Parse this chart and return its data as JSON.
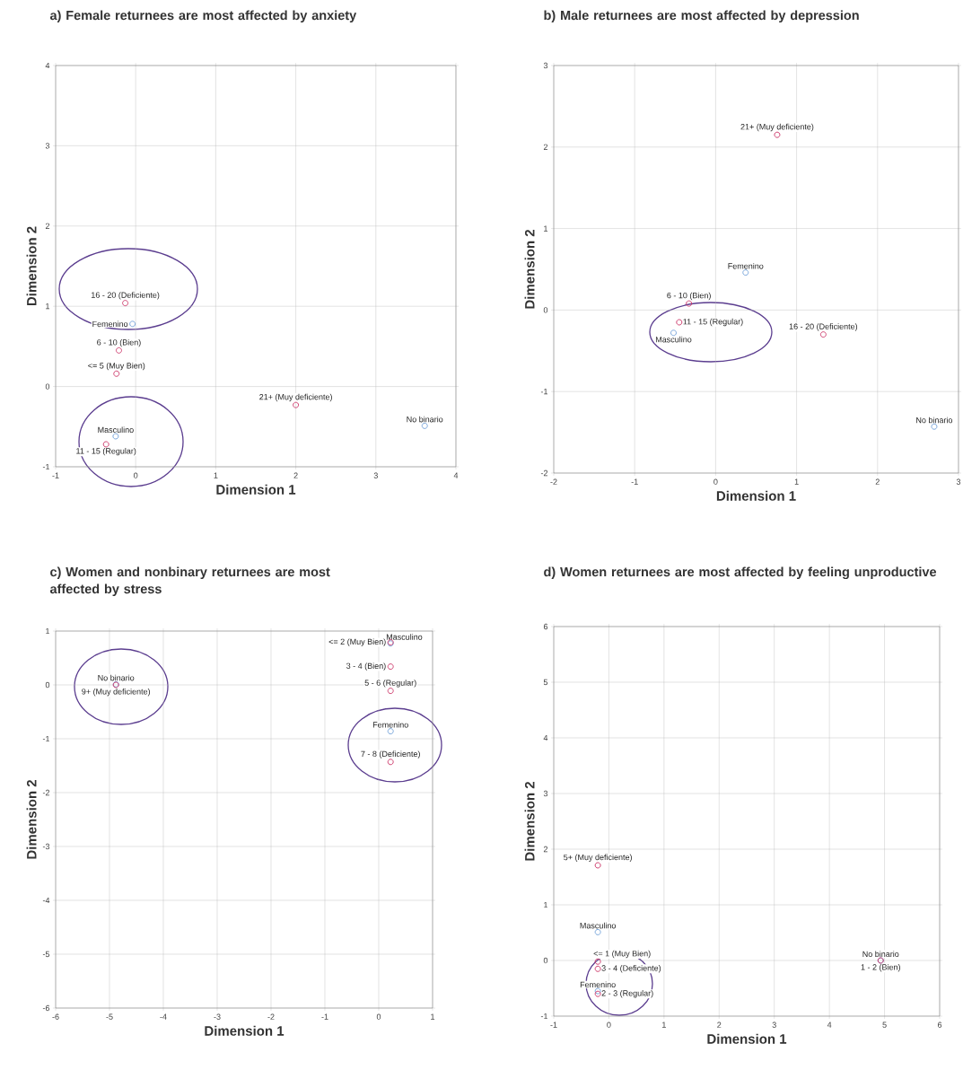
{
  "chart_data": [
    {
      "type": "scatter",
      "title": "a) Female returnees are most affected by anxiety",
      "xlabel": "Dimension 1",
      "ylabel": "Dimension 2",
      "xlim": [
        -1,
        4
      ],
      "ylim": [
        -1,
        4
      ],
      "xticks": [
        -1,
        0,
        1,
        2,
        3,
        4
      ],
      "yticks": [
        -1,
        0,
        1,
        2,
        3,
        4
      ],
      "grid": true,
      "marker": "circle",
      "series": [
        {
          "color": "#6f9fd8",
          "x": [
            -0.04,
            3.61,
            -0.25
          ],
          "values": [
            0.78,
            -0.49,
            -0.62
          ]
        },
        {
          "color": "#cc3366",
          "x": [
            -0.13,
            -0.21,
            -0.24,
            2.0,
            -0.37
          ],
          "values": [
            1.04,
            0.45,
            0.16,
            -0.23,
            -0.72
          ]
        }
      ],
      "annotations": [
        {
          "text": "16 - 20 (Deficiente)",
          "x": -0.13,
          "y": 1.04
        },
        {
          "text": "Femenino",
          "x": -0.04,
          "y": 0.78
        },
        {
          "text": "6 - 10 (Bien)",
          "x": -0.21,
          "y": 0.45
        },
        {
          "text": "<= 5 (Muy Bien)",
          "x": -0.24,
          "y": 0.16
        },
        {
          "text": "21+ (Muy deficiente)",
          "x": 2.0,
          "y": -0.23
        },
        {
          "text": "No binario",
          "x": 3.61,
          "y": -0.49
        },
        {
          "text": "Masculino",
          "x": -0.25,
          "y": -0.62
        },
        {
          "text": "11 - 15 (Regular)",
          "x": -0.37,
          "y": -0.72
        }
      ]
    },
    {
      "type": "scatter",
      "title": "b) Male returnees are most affected by depression",
      "xlabel": "Dimension 1",
      "ylabel": "Dimension 2",
      "xlim": [
        -2,
        3
      ],
      "ylim": [
        -2,
        3
      ],
      "xticks": [
        -2,
        -1,
        0,
        1,
        2,
        3
      ],
      "yticks": [
        -2,
        -1,
        0,
        1,
        2,
        3
      ],
      "grid": true,
      "marker": "circle",
      "series": [
        {
          "color": "#6f9fd8",
          "x": [
            0.37,
            -0.52,
            2.7
          ],
          "values": [
            0.46,
            -0.28,
            -1.43
          ]
        },
        {
          "color": "#cc3366",
          "x": [
            0.76,
            -0.33,
            -0.45,
            1.33
          ],
          "values": [
            2.15,
            0.08,
            -0.15,
            -0.3
          ]
        }
      ],
      "annotations": [
        {
          "text": "21+ (Muy deficiente)",
          "x": 0.76,
          "y": 2.15
        },
        {
          "text": "Femenino",
          "x": 0.37,
          "y": 0.46
        },
        {
          "text": "6 - 10 (Bien)",
          "x": -0.33,
          "y": 0.08
        },
        {
          "text": "11 - 15 (Regular)",
          "x": -0.45,
          "y": -0.15
        },
        {
          "text": "Masculino",
          "x": -0.52,
          "y": -0.28
        },
        {
          "text": "16 - 20 (Deficiente)",
          "x": 1.33,
          "y": -0.3
        },
        {
          "text": "No binario",
          "x": 2.7,
          "y": -1.43
        }
      ]
    },
    {
      "type": "scatter",
      "title": "c) Women and nonbinary returnees are most affected by stress",
      "xlabel": "Dimension 1",
      "ylabel": "Dimension 2",
      "xlim": [
        -6,
        1
      ],
      "ylim": [
        -6,
        1
      ],
      "xticks": [
        -6,
        -5,
        -4,
        -3,
        -2,
        -1,
        0,
        1
      ],
      "yticks": [
        -6,
        -5,
        -4,
        -3,
        -2,
        -1,
        0,
        1
      ],
      "grid": true,
      "marker": "circle",
      "series": [
        {
          "color": "#6f9fd8",
          "x": [
            0.22,
            0.22,
            -4.88
          ],
          "values": [
            0.77,
            -0.86,
            0.01
          ]
        },
        {
          "color": "#cc3366",
          "x": [
            0.22,
            0.22,
            0.22,
            0.22,
            -4.88
          ],
          "values": [
            0.79,
            0.34,
            -0.11,
            -1.43,
            0.0
          ]
        }
      ],
      "annotations": [
        {
          "text": "<= 2 (Muy Bien)",
          "x": 0.22,
          "y": 0.79
        },
        {
          "text": "Masculino",
          "x": 0.22,
          "y": 0.77
        },
        {
          "text": "3 - 4 (Bien)",
          "x": 0.22,
          "y": 0.34
        },
        {
          "text": "5 - 6 (Regular)",
          "x": 0.22,
          "y": -0.11
        },
        {
          "text": "Femenino",
          "x": 0.22,
          "y": -0.86
        },
        {
          "text": "7 - 8 (Deficiente)",
          "x": 0.22,
          "y": -1.43
        },
        {
          "text": "No binario",
          "x": -4.88,
          "y": 0.01
        },
        {
          "text": "9+ (Muy deficiente)",
          "x": -4.88,
          "y": 0.0
        }
      ]
    },
    {
      "type": "scatter",
      "title": "d) Women returnees are most affected by feeling unproductive",
      "xlabel": "Dimension 1",
      "ylabel": "Dimension 2",
      "xlim": [
        -1,
        6
      ],
      "ylim": [
        -1,
        6
      ],
      "xticks": [
        -1,
        0,
        1,
        2,
        3,
        4,
        5,
        6
      ],
      "yticks": [
        -1,
        0,
        1,
        2,
        3,
        4,
        5,
        6
      ],
      "grid": true,
      "marker": "circle",
      "series": [
        {
          "color": "#6f9fd8",
          "x": [
            -0.2,
            -0.2,
            4.93
          ],
          "values": [
            0.51,
            -0.55,
            0.0
          ]
        },
        {
          "color": "#cc3366",
          "x": [
            -0.2,
            -0.2,
            -0.2,
            -0.2,
            4.93
          ],
          "values": [
            1.71,
            -0.02,
            -0.15,
            -0.6,
            0.0
          ]
        }
      ],
      "annotations": [
        {
          "text": "5+ (Muy deficiente)",
          "x": -0.2,
          "y": 1.71
        },
        {
          "text": "Masculino",
          "x": -0.2,
          "y": 0.51
        },
        {
          "text": "<= 1 (Muy Bien)",
          "x": -0.2,
          "y": -0.02
        },
        {
          "text": "3 - 4 (Deficiente)",
          "x": -0.2,
          "y": -0.15
        },
        {
          "text": "Femenino",
          "x": -0.2,
          "y": -0.55
        },
        {
          "text": "2 - 3 (Regular)",
          "x": -0.2,
          "y": -0.6
        },
        {
          "text": "No binario",
          "x": 4.93,
          "y": 0.0
        },
        {
          "text": "1 - 2 (Bien)",
          "x": 4.93,
          "y": 0.0
        }
      ]
    }
  ]
}
